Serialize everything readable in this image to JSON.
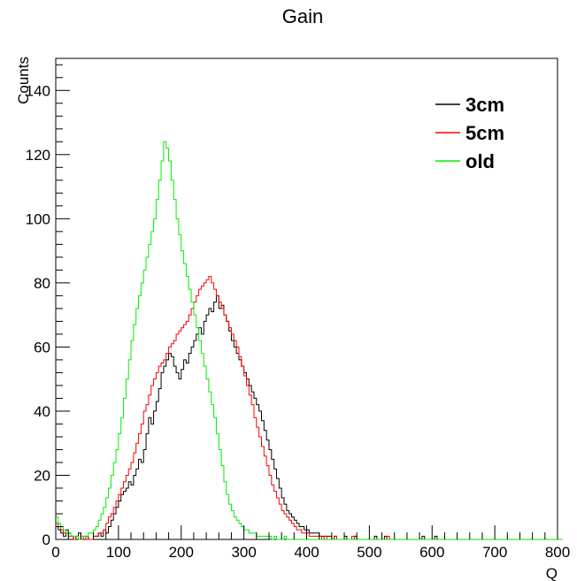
{
  "chart_data": {
    "type": "line",
    "title": "Gain",
    "xlabel": "Q",
    "ylabel": "Counts",
    "xlim": [
      0,
      800
    ],
    "ylim": [
      0,
      150
    ],
    "x_ticks": [
      0,
      100,
      200,
      300,
      400,
      500,
      600,
      700,
      800
    ],
    "y_ticks": [
      0,
      20,
      40,
      60,
      80,
      100,
      120,
      140
    ],
    "grid": false,
    "legend_position": "top-right",
    "bin_width": 4,
    "series": [
      {
        "name": "3cm",
        "color": "#000000",
        "values": [
          4,
          3,
          2,
          1,
          3,
          2,
          1,
          0,
          1,
          2,
          0,
          0,
          1,
          0,
          0,
          1,
          1,
          2,
          1,
          3,
          2,
          4,
          6,
          8,
          10,
          12,
          14,
          15,
          16,
          18,
          17,
          20,
          22,
          25,
          24,
          28,
          33,
          38,
          36,
          40,
          43,
          47,
          52,
          54,
          56,
          58,
          57,
          54,
          52,
          50,
          53,
          56,
          55,
          58,
          60,
          62,
          64,
          66,
          64,
          68,
          70,
          72,
          71,
          74,
          76,
          72,
          73,
          70,
          68,
          65,
          62,
          60,
          58,
          56,
          54,
          52,
          50,
          48,
          46,
          44,
          42,
          40,
          37,
          34,
          31,
          28,
          25,
          22,
          19,
          16,
          13,
          11,
          9,
          8,
          7,
          6,
          5,
          4,
          4,
          3,
          3,
          2,
          2,
          2,
          2,
          1,
          1,
          1,
          1,
          1,
          0,
          1,
          0,
          0,
          0,
          1,
          0,
          0,
          0,
          1,
          0,
          0,
          0,
          0,
          0,
          0,
          0,
          1,
          0,
          0,
          0,
          1,
          0,
          0,
          0,
          0,
          0,
          0,
          0,
          0,
          0,
          0,
          0,
          0,
          0,
          0,
          1,
          0,
          0,
          0,
          0,
          1,
          0,
          0,
          0,
          0,
          0,
          0,
          0,
          0,
          0,
          0,
          0,
          0,
          0,
          0,
          0,
          0,
          0,
          0,
          0,
          0,
          0,
          0,
          0,
          0,
          0,
          0,
          0,
          0,
          0,
          0,
          0,
          0,
          0,
          0,
          0,
          0,
          0,
          0,
          0,
          0,
          0,
          0,
          0,
          0,
          0,
          0
        ]
      },
      {
        "name": "5cm",
        "color": "#ff0000",
        "values": [
          5,
          4,
          3,
          2,
          2,
          1,
          1,
          0,
          1,
          0,
          0,
          1,
          0,
          0,
          0,
          1,
          1,
          2,
          2,
          3,
          5,
          7,
          8,
          10,
          12,
          14,
          16,
          18,
          20,
          22,
          24,
          27,
          30,
          33,
          36,
          40,
          42,
          45,
          48,
          50,
          52,
          54,
          55,
          56,
          58,
          60,
          61,
          62,
          64,
          65,
          66,
          67,
          68,
          70,
          72,
          74,
          76,
          78,
          79,
          80,
          81,
          82,
          80,
          78,
          76,
          74,
          72,
          70,
          68,
          66,
          64,
          62,
          60,
          57,
          54,
          51,
          48,
          45,
          42,
          38,
          35,
          32,
          29,
          26,
          23,
          20,
          17,
          15,
          13,
          11,
          9,
          8,
          7,
          6,
          5,
          4,
          3,
          3,
          2,
          2,
          2,
          1,
          1,
          1,
          1,
          1,
          0,
          1,
          0,
          0,
          0,
          1,
          0,
          0,
          0,
          0,
          0,
          0,
          1,
          0,
          0,
          0,
          0,
          0,
          0,
          0,
          0,
          0,
          0,
          0,
          0,
          0,
          1,
          0,
          0,
          0,
          0,
          0,
          0,
          0,
          0,
          0,
          0,
          0,
          0,
          0,
          0,
          0,
          0,
          0,
          0,
          0,
          0,
          0,
          0,
          0,
          0,
          0,
          0,
          0,
          0,
          0,
          0,
          0,
          0,
          0,
          0,
          0,
          0,
          0,
          0,
          0,
          0,
          0,
          0,
          0,
          0,
          0,
          0,
          0,
          0,
          0,
          0,
          0,
          0,
          0,
          0,
          0,
          0,
          0,
          0,
          0,
          0,
          0,
          0,
          0,
          0
        ]
      },
      {
        "name": "old",
        "color": "#00ee00",
        "values": [
          7,
          5,
          4,
          3,
          2,
          2,
          1,
          1,
          1,
          0,
          1,
          1,
          1,
          2,
          2,
          3,
          4,
          6,
          8,
          10,
          13,
          16,
          20,
          24,
          28,
          33,
          38,
          44,
          50,
          56,
          62,
          67,
          72,
          76,
          80,
          84,
          88,
          92,
          96,
          100,
          106,
          112,
          118,
          124,
          122,
          118,
          112,
          106,
          100,
          95,
          90,
          86,
          82,
          78,
          74,
          70,
          66,
          62,
          58,
          54,
          50,
          46,
          42,
          38,
          33,
          28,
          23,
          18,
          14,
          11,
          9,
          7,
          6,
          5,
          4,
          3,
          3,
          2,
          2,
          2,
          1,
          1,
          1,
          1,
          1,
          1,
          0,
          1,
          0,
          0,
          0,
          1,
          0,
          0,
          0,
          0,
          0,
          0,
          0,
          0,
          0,
          0,
          0,
          0,
          0,
          0,
          0,
          0,
          0,
          0,
          0,
          0,
          0,
          0,
          0,
          0,
          0,
          0,
          0,
          0,
          0,
          0,
          0,
          0,
          0,
          0,
          0,
          0,
          0,
          0,
          0,
          0,
          0,
          0,
          0,
          0,
          0,
          0,
          0,
          0,
          0,
          0,
          0,
          0,
          0,
          0,
          0,
          0,
          0,
          0,
          0,
          0,
          0,
          0,
          0,
          0,
          0,
          0,
          0,
          0,
          0,
          0,
          0,
          0,
          0,
          0,
          0,
          0,
          0,
          0,
          0,
          0,
          0,
          0,
          0,
          0,
          0,
          0,
          0,
          0,
          0,
          0,
          0,
          0,
          0,
          0,
          0,
          0,
          0,
          0,
          0,
          0,
          0,
          0,
          0,
          0,
          0,
          0,
          0,
          0,
          0,
          0
        ]
      }
    ]
  }
}
